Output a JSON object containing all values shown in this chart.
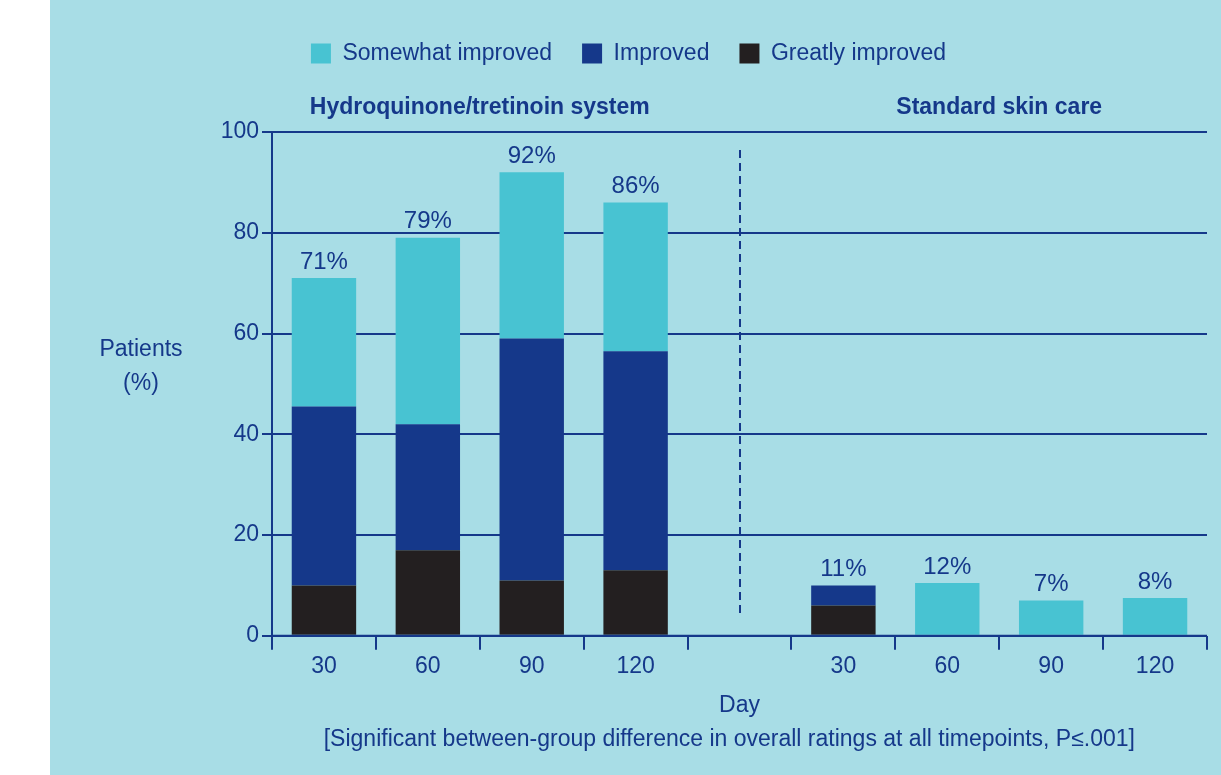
{
  "chart_data": {
    "type": "bar",
    "stacked": true,
    "categories": [
      "30",
      "60",
      "90",
      "120",
      null,
      "30",
      "60",
      "90",
      "120"
    ],
    "series": [
      {
        "name": "Greatly improved",
        "color": "#231f20",
        "values": [
          10,
          17,
          11,
          13,
          null,
          6,
          null,
          null,
          null
        ]
      },
      {
        "name": "Improved",
        "color": "#15388a",
        "values": [
          35.5,
          25,
          48,
          43.5,
          null,
          4,
          null,
          null,
          null
        ]
      },
      {
        "name": "Somewhat improved",
        "color": "#48c3d2",
        "values": [
          25.5,
          37,
          33,
          29.5,
          null,
          null,
          10.5,
          7,
          7.5
        ]
      }
    ],
    "totals": [
      "71%",
      "79%",
      "92%",
      "86%",
      null,
      "11%",
      "12%",
      "7%",
      "8%"
    ],
    "ylim": [
      0,
      100
    ],
    "yticks": [
      0,
      20,
      40,
      60,
      80,
      100
    ],
    "grid": "y",
    "legend": "top",
    "xlabel": "Day",
    "ylabel": "Patients\n(%)",
    "annotations": [
      "Hydroquinone/tretinoin system",
      "Standard skin care",
      "[Significant between-group difference in overall ratings at all timepoints, P≤.001]"
    ]
  }
}
